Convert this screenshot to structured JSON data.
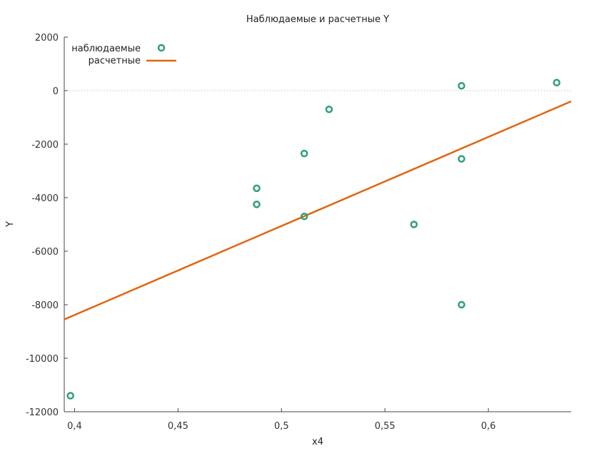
{
  "chart_data": {
    "type": "scatter",
    "title": "Наблюдаемые и расчетные Y",
    "xlabel": "x4",
    "ylabel": "Y",
    "xlim": [
      0.395,
      0.64
    ],
    "ylim": [
      -12000,
      2000
    ],
    "x_ticks": [
      0.4,
      0.45,
      0.5,
      0.55,
      0.6
    ],
    "x_tick_labels": [
      "0,4",
      "0,45",
      "0,5",
      "0,55",
      "0,6"
    ],
    "y_ticks": [
      2000,
      0,
      -2000,
      -4000,
      -6000,
      -8000,
      -10000,
      -12000
    ],
    "y_tick_labels": [
      "2000",
      "0",
      "-2000",
      "-4000",
      "-6000",
      "-8000",
      "-10000",
      "-12000"
    ],
    "zero_line": true,
    "legend_position": "top-left",
    "series": [
      {
        "name": "наблюдаемые",
        "kind": "scatter",
        "color": "#2e9e7e",
        "points": [
          {
            "x": 0.398,
            "y": -11400
          },
          {
            "x": 0.488,
            "y": -3650
          },
          {
            "x": 0.488,
            "y": -4250
          },
          {
            "x": 0.511,
            "y": -2350
          },
          {
            "x": 0.511,
            "y": -4700
          },
          {
            "x": 0.523,
            "y": -700
          },
          {
            "x": 0.564,
            "y": -5000
          },
          {
            "x": 0.587,
            "y": 180
          },
          {
            "x": 0.587,
            "y": -2550
          },
          {
            "x": 0.587,
            "y": -8000
          },
          {
            "x": 0.633,
            "y": 300
          }
        ]
      },
      {
        "name": "расчетные",
        "kind": "line",
        "color": "#e0650e",
        "points": [
          {
            "x": 0.395,
            "y": -8550
          },
          {
            "x": 0.64,
            "y": -400
          }
        ]
      }
    ]
  }
}
